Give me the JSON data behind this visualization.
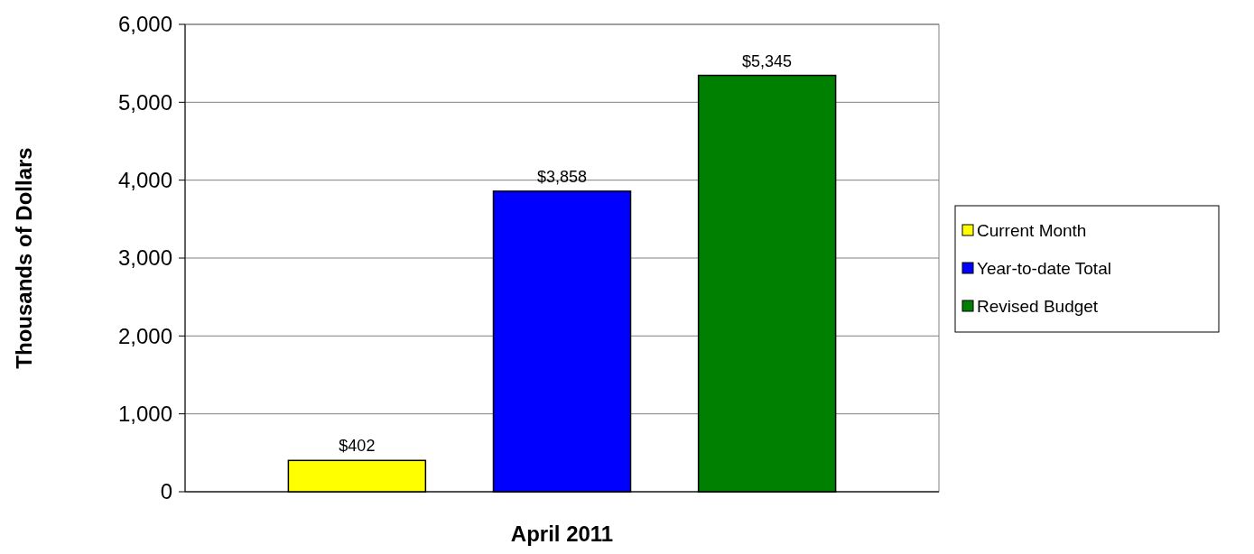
{
  "chart_data": {
    "type": "bar",
    "ylabel": "Thousands of Dollars",
    "categories": [
      "April 2011"
    ],
    "series": [
      {
        "name": "Current Month",
        "color": "#ffff00",
        "values": [
          402
        ],
        "value_labels": [
          "$402"
        ]
      },
      {
        "name": "Year-to-date Total",
        "color": "#0000ff",
        "values": [
          3858
        ],
        "value_labels": [
          "$3,858"
        ]
      },
      {
        "name": "Revised Budget",
        "color": "#008000",
        "values": [
          5345
        ],
        "value_labels": [
          "$5,345"
        ]
      }
    ],
    "ylim": [
      0,
      6000
    ],
    "yticks": [
      {
        "value": 0,
        "label": "0"
      },
      {
        "value": 1000,
        "label": "1,000"
      },
      {
        "value": 2000,
        "label": "2,000"
      },
      {
        "value": 3000,
        "label": "3,000"
      },
      {
        "value": 4000,
        "label": "4,000"
      },
      {
        "value": 5000,
        "label": "5,000"
      },
      {
        "value": 6000,
        "label": "6,000"
      }
    ],
    "grid": "y",
    "legend": "right"
  }
}
